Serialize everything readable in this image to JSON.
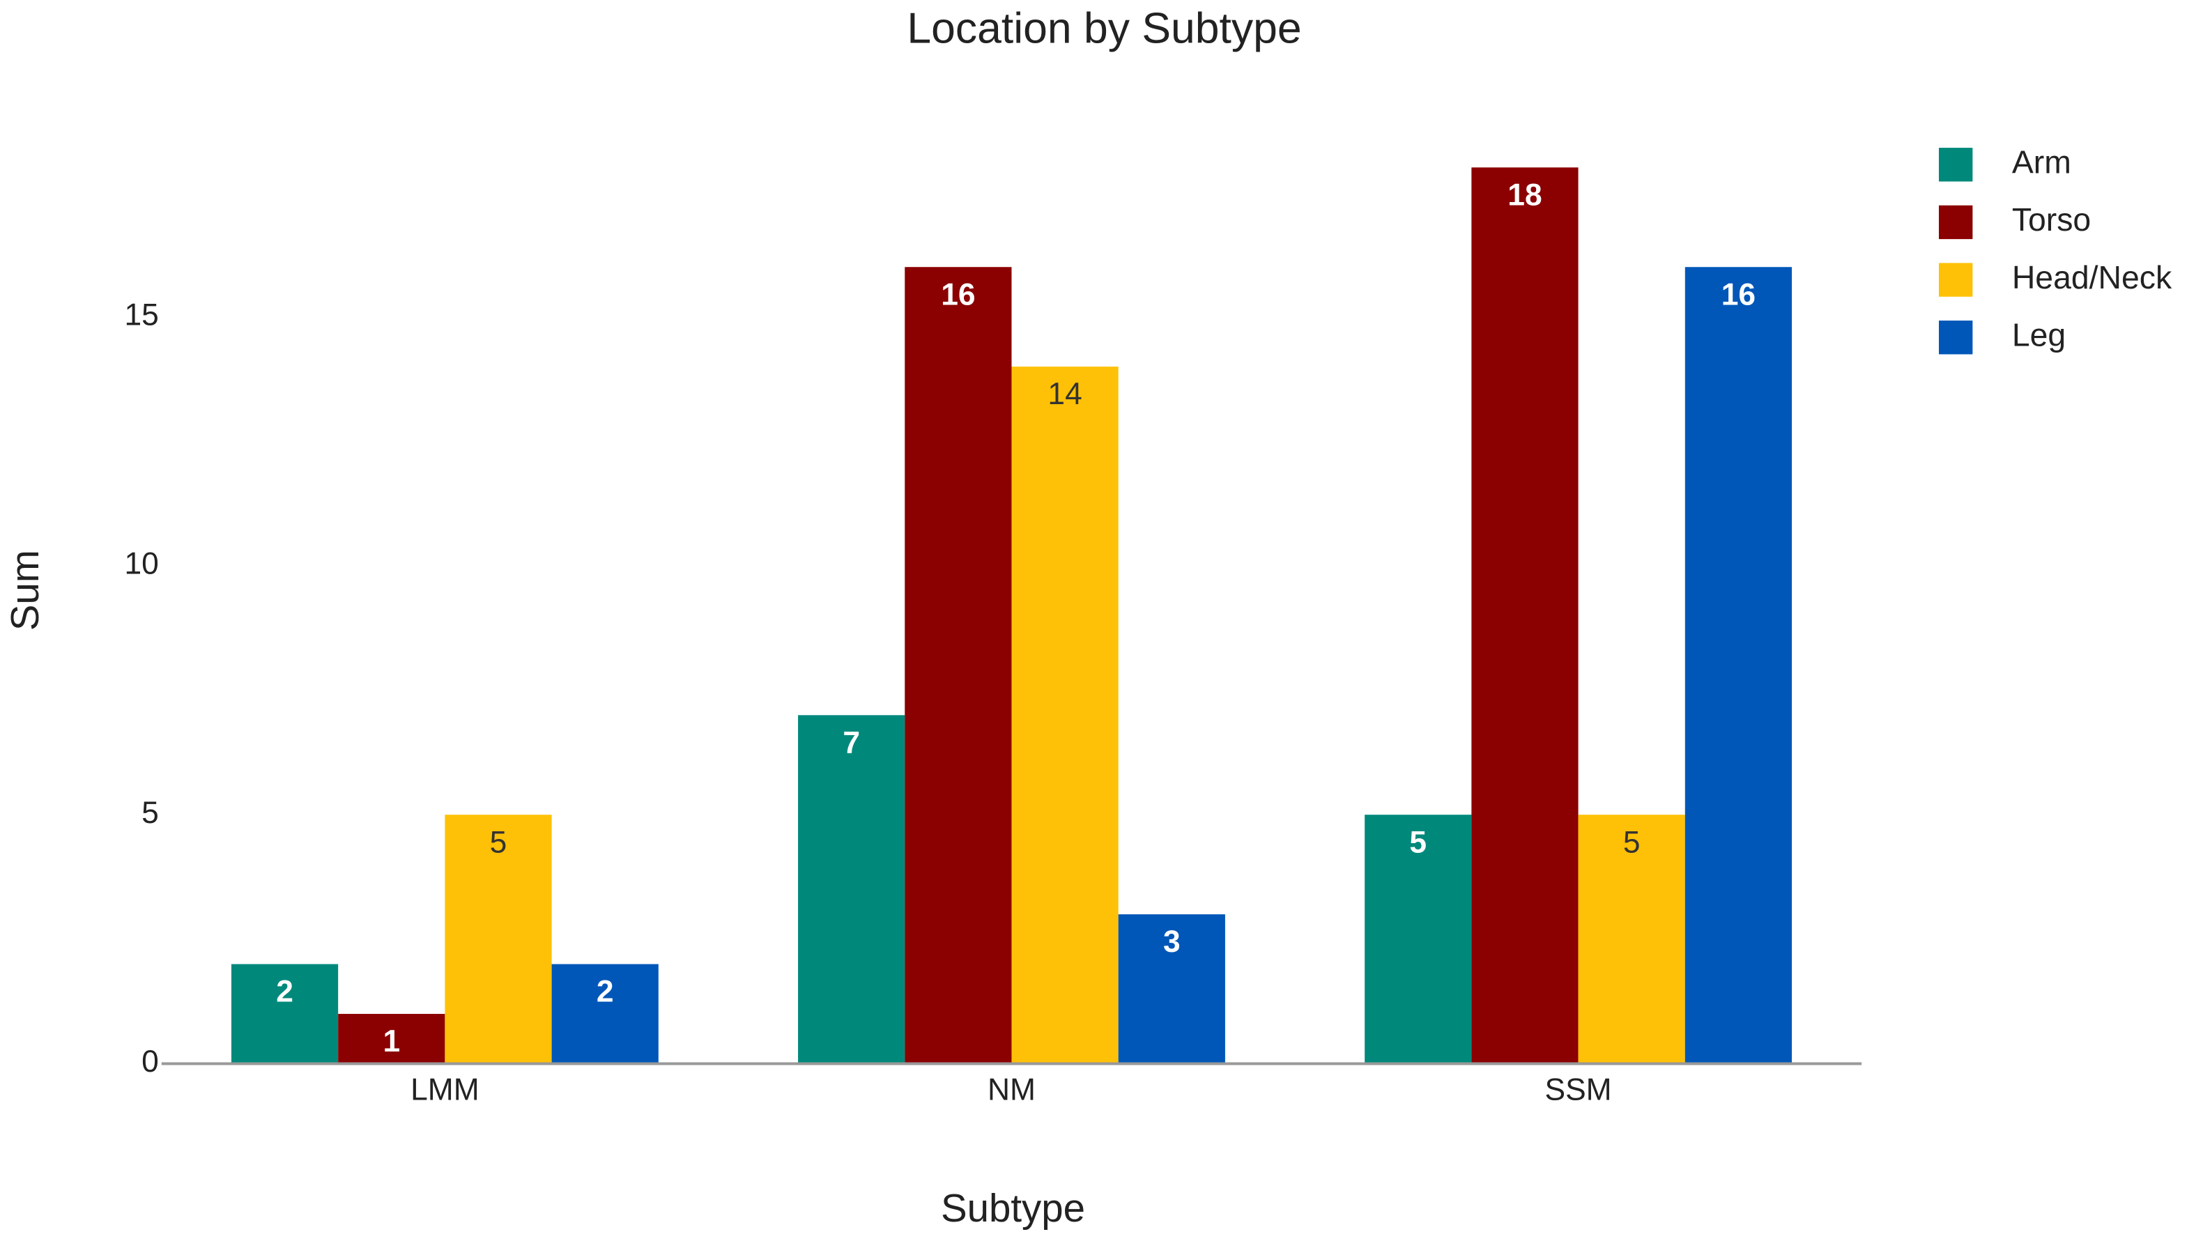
{
  "chart_data": {
    "type": "bar",
    "title": "Location by Subtype",
    "x_label": "Subtype",
    "y_label": "Sum",
    "categories": [
      "LMM",
      "NM",
      "SSM"
    ],
    "series": [
      {
        "name": "Arm",
        "color": "#00897b",
        "values": [
          2,
          7,
          5
        ]
      },
      {
        "name": "Torso",
        "color": "#8b0000",
        "values": [
          1,
          16,
          18
        ]
      },
      {
        "name": "Head/Neck",
        "color": "#ffc107",
        "values": [
          5,
          14,
          5
        ]
      },
      {
        "name": "Leg",
        "color": "#0057b8",
        "values": [
          2,
          3,
          16
        ]
      }
    ],
    "ylim": [
      0,
      18
    ],
    "yticks": [
      0,
      5,
      10,
      15
    ],
    "grid": false,
    "legend": "right"
  }
}
